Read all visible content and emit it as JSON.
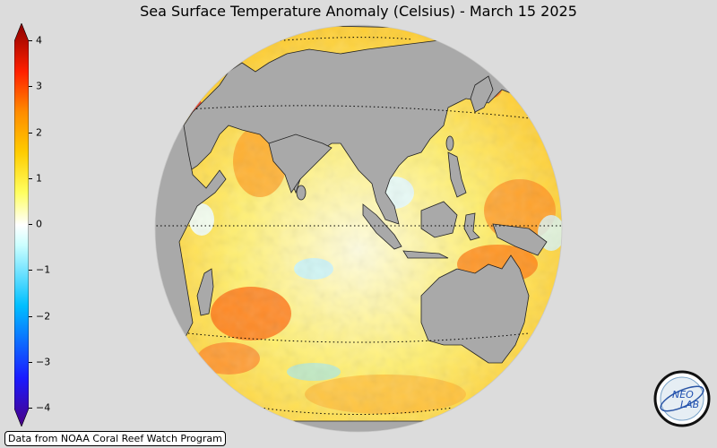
{
  "title": "Sea Surface Temperature Anomaly (Celsius) - March 15 2025",
  "colorbar": {
    "min": -4,
    "max": 4,
    "ticks": [
      "4",
      "3",
      "2",
      "1",
      "0",
      "−1",
      "−2",
      "−3",
      "−4"
    ],
    "colors": [
      "#4b0082",
      "#0000ff",
      "#00bfff",
      "#ffffff",
      "#ffff00",
      "#ff8c00",
      "#ff0000",
      "#8b0000"
    ]
  },
  "credit": "Data from NOAA Coral Reef Watch Program",
  "logo": {
    "text": "NEO LAB",
    "icon": "neo-lab-logo-icon"
  },
  "map": {
    "land_color": "#a9a9a9",
    "ocean_base_color": "#fff8b0",
    "graticule": "dotted"
  }
}
